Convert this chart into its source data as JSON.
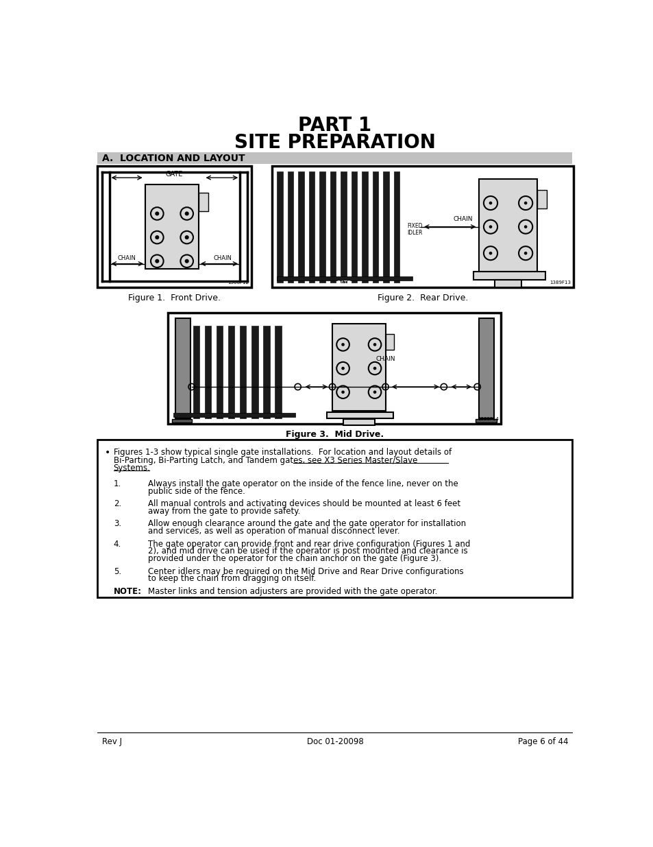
{
  "title_line1": "PART 1",
  "title_line2": "SITE PREPARATION",
  "section_header": "A.  LOCATION AND LAYOUT",
  "fig1_caption": "Figure 1.  Front Drive.",
  "fig2_caption": "Figure 2.  Rear Drive.",
  "fig3_caption": "Figure 3.  Mid Drive.",
  "items": [
    {
      "num": "1.",
      "text": "Always install the gate operator on the inside of the fence line, never on the\npublic side of the fence."
    },
    {
      "num": "2.",
      "text": "All manual controls and activating devices should be mounted at least 6 feet\naway from the gate to provide safety."
    },
    {
      "num": "3.",
      "text": "Allow enough clearance around the gate and the gate operator for installation\nand services, as well as operation of manual disconnect lever."
    },
    {
      "num": "4.",
      "text": "The gate operator can provide front and rear drive configuration (Figures 1 and\n2), and mid drive can be used if the operator is post mounted and clearance is\nprovided under the operator for the chain anchor on the gate (Figure 3)."
    },
    {
      "num": "5.",
      "text": "Center idlers may be required on the Mid Drive and Rear Drive configurations\nto keep the chain from dragging on itself."
    }
  ],
  "note_label": "NOTE:",
  "note_text": "Master links and tension adjusters are provided with the gate operator.",
  "footer_left": "Rev J",
  "footer_center": "Doc 01-20098",
  "footer_right": "Page 6 of 44",
  "bg_color": "#ffffff",
  "text_color": "#000000",
  "section_bg": "#c0c0c0"
}
